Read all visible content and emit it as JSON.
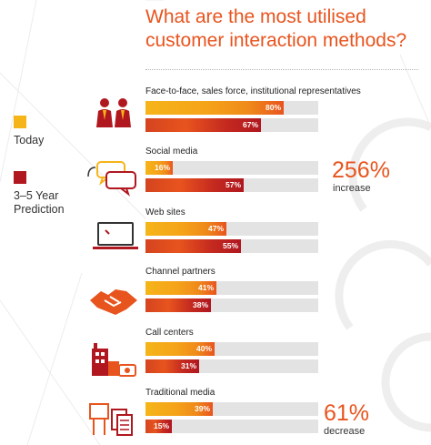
{
  "title": "What are the most utilised customer interaction methods?",
  "legend": [
    {
      "label": "Today",
      "color": "#f5b519"
    },
    {
      "label": "3–5 Year Prediction",
      "color": "#b0171f"
    }
  ],
  "chart_data": {
    "type": "bar",
    "title": "What are the most utilised customer interaction methods?",
    "categories": [
      "Face-to-face, sales force, institutional representatives",
      "Social media",
      "Web sites",
      "Channel partners",
      "Call centers",
      "Traditional media"
    ],
    "series": [
      {
        "name": "Today",
        "values": [
          80,
          16,
          47,
          41,
          40,
          39
        ]
      },
      {
        "name": "3–5 Year Prediction",
        "values": [
          67,
          57,
          55,
          38,
          31,
          15
        ]
      }
    ],
    "value_labels": {
      "Today": [
        "80%",
        "16%",
        "47%",
        "41%",
        "40%",
        "39%"
      ],
      "3–5 Year Prediction": [
        "67%",
        "57%",
        "55%",
        "38%",
        "31%",
        "15%"
      ]
    },
    "ylim": [
      0,
      100
    ],
    "annotations": [
      {
        "category": "Social media",
        "value": "256%",
        "text": "increase"
      },
      {
        "category": "Traditional media",
        "value": "61%",
        "text": "decrease"
      }
    ]
  },
  "icons": [
    "people-icon",
    "speech-bubbles-icon",
    "laptop-icon",
    "handshake-icon",
    "factory-phone-icon",
    "billboard-documents-icon"
  ],
  "colors": {
    "accent": "#e8541e",
    "today": "#f5b519",
    "prediction": "#b0171f",
    "track": "#e3e3e3"
  }
}
